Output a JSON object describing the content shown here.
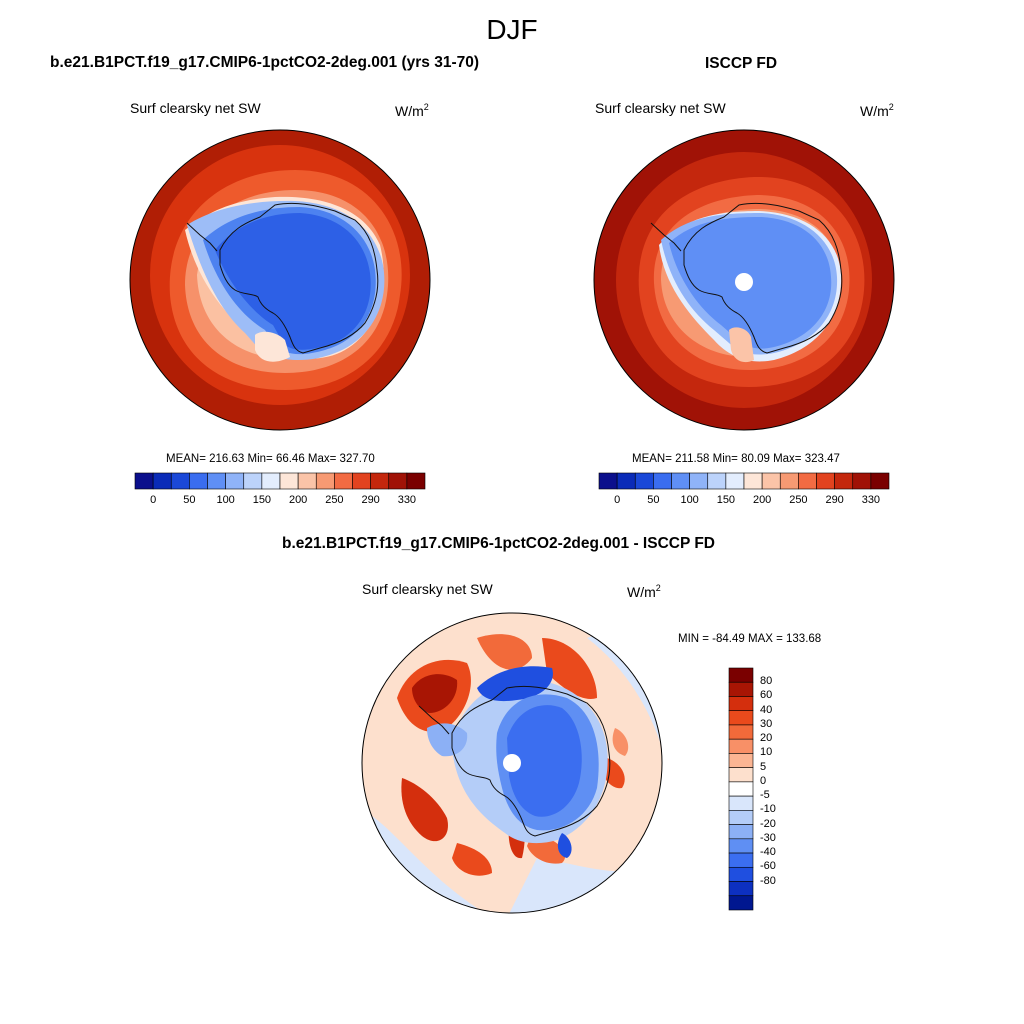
{
  "title": "DJF",
  "panels": [
    {
      "title": "b.e21.B1PCT.f19_g17.CMIP6-1pctCO2-2deg.001 (yrs 31-70)",
      "variable": "Surf clearsky net SW",
      "units": "W/m",
      "units_exp": "2",
      "stats": "MEAN= 216.63  Min=  66.46  Max= 327.70"
    },
    {
      "title": "ISCCP FD",
      "variable": "Surf clearsky net SW",
      "units": "W/m",
      "units_exp": "2",
      "stats": "MEAN= 211.58  Min=  80.09  Max= 323.47"
    },
    {
      "title": "b.e21.B1PCT.f19_g17.CMIP6-1pctCO2-2deg.001 - ISCCP FD",
      "variable": "Surf clearsky net SW",
      "units": "W/m",
      "units_exp": "2",
      "stats": "MIN = -84.49 MAX = 133.68"
    }
  ],
  "colorbar_abs": {
    "ticks": [
      "0",
      "50",
      "100",
      "150",
      "200",
      "250",
      "290",
      "330"
    ],
    "colors": [
      "#0b0f8c",
      "#0a2bb8",
      "#1a48d8",
      "#3a6df0",
      "#5f8ff5",
      "#8fb3f8",
      "#bcd3fb",
      "#e3edfd",
      "#fde6d8",
      "#fbc4a8",
      "#f79a73",
      "#f26b43",
      "#e2431f",
      "#c4270d",
      "#a01206",
      "#7a0000"
    ]
  },
  "colorbar_diff": {
    "ticks": [
      "80",
      "60",
      "40",
      "30",
      "20",
      "10",
      "5",
      "0",
      "-5",
      "-10",
      "-20",
      "-30",
      "-40",
      "-60",
      "-80"
    ],
    "colors": [
      "#7a0000",
      "#a81504",
      "#d42f0d",
      "#ea4a1c",
      "#f26a3a",
      "#f89067",
      "#fbb593",
      "#fde0cd",
      "#ffffff",
      "#d9e6fb",
      "#b4cdf8",
      "#8cb0f5",
      "#5f8ff3",
      "#3b6ef0",
      "#1f4fe0",
      "#0d30c0",
      "#001790"
    ]
  },
  "colors": {
    "deep_red": "#b01e05",
    "red": "#d8330e",
    "orange_red": "#ee5a2c",
    "salmon": "#f6916a",
    "light_salmon": "#fbc1a2",
    "pale": "#fde6d8",
    "pale_blue": "#d6e4fb",
    "light_blue": "#9dbdf7",
    "mid_blue": "#4d82f0",
    "ice_blue": "#2d60e6"
  }
}
